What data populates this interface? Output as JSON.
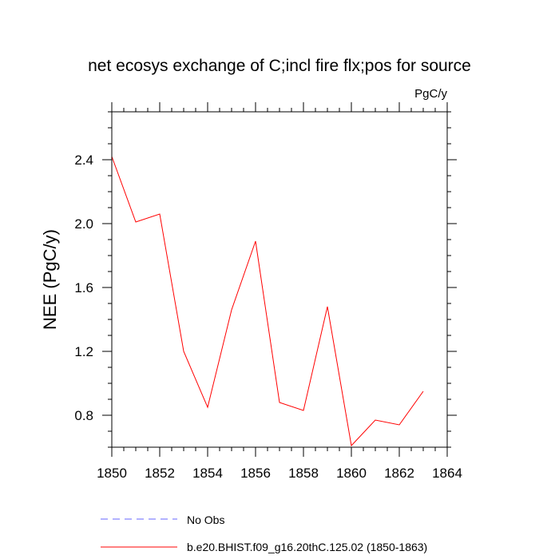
{
  "chart_data": {
    "type": "line",
    "title": "net ecosys exchange of C;incl fire flx;pos for source",
    "units": "PgC/y",
    "xlabel": "",
    "ylabel": "NEE  (PgC/y)",
    "xlim": [
      1850,
      1864
    ],
    "ylim": [
      0.6,
      2.7
    ],
    "x_ticks": [
      1850,
      1852,
      1854,
      1856,
      1858,
      1860,
      1862,
      1864
    ],
    "y_ticks": [
      0.8,
      1.2,
      1.6,
      2.0,
      2.4
    ],
    "x_tick_labels": [
      "1850",
      "1852",
      "1854",
      "1856",
      "1858",
      "1860",
      "1862",
      "1864"
    ],
    "y_tick_labels": [
      "0.8",
      "1.2",
      "1.6",
      "2.0",
      "2.4"
    ],
    "grid": false,
    "legend_position": "bottom",
    "series": [
      {
        "name": "b.e20.BHIST.f09_g16.20thC.125.02 (1850-1863)",
        "color": "#ff0000",
        "style": "solid",
        "x": [
          1850,
          1851,
          1852,
          1853,
          1854,
          1855,
          1856,
          1857,
          1858,
          1859,
          1860,
          1861,
          1862,
          1863
        ],
        "y": [
          2.42,
          2.01,
          2.06,
          1.2,
          0.85,
          1.46,
          1.89,
          0.88,
          0.83,
          1.48,
          0.61,
          0.77,
          0.74,
          0.95
        ]
      }
    ],
    "legend": [
      {
        "label": "No Obs",
        "color": "#6666ff",
        "style": "dashed"
      },
      {
        "label": "b.e20.BHIST.f09_g16.20thC.125.02 (1850-1863)",
        "color": "#ff0000",
        "style": "solid"
      }
    ]
  }
}
